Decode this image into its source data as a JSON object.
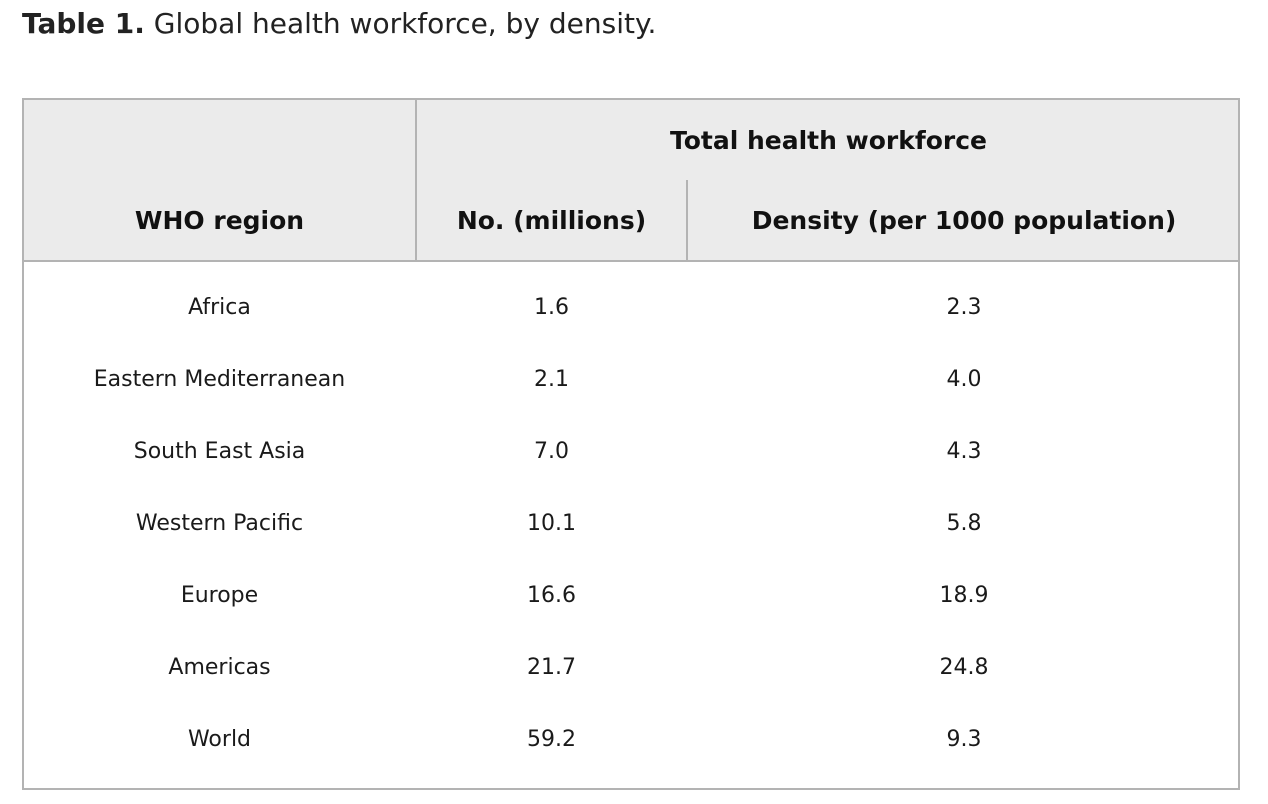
{
  "caption": {
    "label": "Table 1.",
    "text": " Global health workforce, by density."
  },
  "table": {
    "group_header": "Total health workforce",
    "columns": {
      "region": "WHO region",
      "number": "No. (millions)",
      "density": "Density (per 1000 population)"
    },
    "rows": [
      {
        "region": "Africa",
        "number": "1.6",
        "density": "2.3"
      },
      {
        "region": "Eastern Mediterranean",
        "number": "2.1",
        "density": "4.0"
      },
      {
        "region": "South East Asia",
        "number": "7.0",
        "density": "4.3"
      },
      {
        "region": "Western Pacific",
        "number": "10.1",
        "density": "5.8"
      },
      {
        "region": "Europe",
        "number": "16.6",
        "density": "18.9"
      },
      {
        "region": "Americas",
        "number": "21.7",
        "density": "24.8"
      },
      {
        "region": "World",
        "number": "59.2",
        "density": "9.3"
      }
    ]
  },
  "colors": {
    "header_background": "#ebebeb",
    "border": "#b3b3b3",
    "text": "#1a1a1a"
  }
}
